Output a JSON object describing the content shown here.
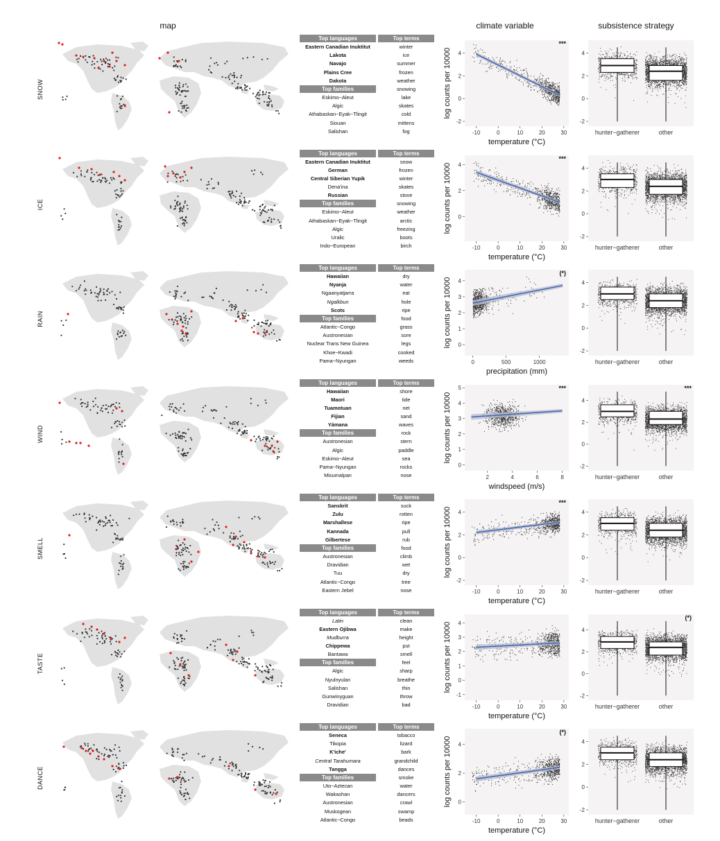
{
  "headers": {
    "map": "map",
    "climate": "climate variable",
    "subsistence": "subsistence strategy"
  },
  "table_headers": {
    "languages": "Top languages",
    "terms": "Top terms",
    "families": "Top families"
  },
  "boxplot_categories": [
    "hunter−gatherer",
    "other"
  ],
  "ylabel": "log counts per 10000",
  "colors": {
    "point": "#333333",
    "highlight": "#e41a1c",
    "fit": "#4a67b0",
    "band": "#b8bfd0",
    "panel": "#f6f3f4",
    "land": "#e1e1e1",
    "tablehead": "#8a8a8a"
  },
  "rows": [
    {
      "label": "SNOW",
      "languages": [
        {
          "name": "Eastern Canadian Inuktitut",
          "style": "b"
        },
        {
          "name": "Lakota",
          "style": "b"
        },
        {
          "name": "Navajo",
          "style": "b"
        },
        {
          "name": "Plains Cree",
          "style": "b"
        },
        {
          "name": "Dakota",
          "style": "b"
        }
      ],
      "families": [
        "Eskimo−Aleut",
        "Algic",
        "Athabaskan−Eyak−Tlingit",
        "Siouan",
        "Salishan"
      ],
      "terms": [
        "winter",
        "ice",
        "summer",
        "frozen",
        "weather",
        "snowing",
        "lake",
        "skates",
        "cold",
        "mittens",
        "fog"
      ],
      "scatter": {
        "xlabel": "temperature (°C)",
        "xlim": [
          -14,
          31
        ],
        "ylim": [
          -2.3,
          5
        ],
        "xticks": [
          -10,
          0,
          10,
          20,
          30
        ],
        "yticks": [
          -2,
          0,
          2,
          4
        ],
        "sig": "***",
        "fit": [
          [
            -10,
            3.9
          ],
          [
            28,
            0.3
          ]
        ],
        "trend": "negative"
      },
      "box": {
        "ylim": [
          -2.3,
          5
        ],
        "yticks": [
          -2,
          0,
          2,
          4
        ],
        "sig": "",
        "hg": {
          "q1": 2.3,
          "median": 2.9,
          "q3": 3.5
        },
        "other": {
          "q1": 1.6,
          "median": 2.4,
          "q3": 2.9
        }
      }
    },
    {
      "label": "ICE",
      "languages": [
        {
          "name": "Eastern Canadian Inuktitut",
          "style": "b"
        },
        {
          "name": "German",
          "style": "b"
        },
        {
          "name": "Central Siberian Yupik",
          "style": "b"
        },
        {
          "name": "Dena'ina",
          "style": ""
        },
        {
          "name": "Russian",
          "style": "b"
        }
      ],
      "families": [
        "Eskimo−Aleut",
        "Athabaskan−Eyak−Tlingit",
        "Algic",
        "Uralic",
        "Indo−European"
      ],
      "terms": [
        "snow",
        "frozen",
        "winter",
        "skates",
        "stove",
        "snowing",
        "weather",
        "arctic",
        "freezing",
        "boots",
        "birch"
      ],
      "scatter": {
        "xlabel": "temperature (°C)",
        "xlim": [
          -14,
          31
        ],
        "ylim": [
          -1.8,
          4.6
        ],
        "xticks": [
          -10,
          0,
          10,
          20,
          30
        ],
        "yticks": [
          0,
          2,
          4
        ],
        "sig": "***",
        "fit": [
          [
            -10,
            3.4
          ],
          [
            28,
            1.1
          ]
        ],
        "trend": "negative"
      },
      "box": {
        "ylim": [
          -2.3,
          5
        ],
        "yticks": [
          -2,
          0,
          2,
          4
        ],
        "sig": "",
        "hg": {
          "q1": 2.3,
          "median": 3.0,
          "q3": 3.5
        },
        "other": {
          "q1": 1.7,
          "median": 2.4,
          "q3": 3.0
        }
      }
    },
    {
      "label": "RAIN",
      "languages": [
        {
          "name": "Hawaiian",
          "style": "b"
        },
        {
          "name": "Nyanja",
          "style": "b"
        },
        {
          "name": "Ngaanyatjarra",
          "style": ""
        },
        {
          "name": "Ngalkbun",
          "style": "i"
        },
        {
          "name": "Scots",
          "style": "b"
        }
      ],
      "families": [
        "Atlantic−Congo",
        "Austronesian",
        "Nuclear Trans New Guinea",
        "Khoe−Kwadi",
        "Pama−Nyungan"
      ],
      "terms": [
        "dry",
        "water",
        "eat",
        "hole",
        "ripe",
        "food",
        "grass",
        "sore",
        "legs",
        "cooked",
        "weeds"
      ],
      "scatter": {
        "xlabel": "precipitation (mm)",
        "xlim": [
          -80,
          1400
        ],
        "ylim": [
          -0.6,
          4.6
        ],
        "xticks": [
          0,
          500,
          1000
        ],
        "yticks": [
          0,
          1,
          2,
          3,
          4
        ],
        "sig": "(*)",
        "fit": [
          [
            0,
            2.6
          ],
          [
            1350,
            3.7
          ]
        ],
        "trend": "rain"
      },
      "box": {
        "ylim": [
          -2.3,
          5
        ],
        "yticks": [
          -2,
          0,
          2,
          4
        ],
        "sig": "",
        "hg": {
          "q1": 2.5,
          "median": 3.0,
          "q3": 3.6
        },
        "other": {
          "q1": 1.8,
          "median": 2.4,
          "q3": 3.0
        }
      }
    },
    {
      "label": "WIND",
      "languages": [
        {
          "name": "Hawaiian",
          "style": "b"
        },
        {
          "name": "Maori",
          "style": "b"
        },
        {
          "name": "Tuamotuan",
          "style": "b"
        },
        {
          "name": "Fijian",
          "style": "b"
        },
        {
          "name": "Yámana",
          "style": "b"
        }
      ],
      "families": [
        "Austronesian",
        "Algic",
        "Eskimo−Aleut",
        "Pama−Nyungan",
        "Misumalpan"
      ],
      "terms": [
        "shore",
        "tide",
        "net",
        "sand",
        "waves",
        "rock",
        "stern",
        "paddle",
        "sea",
        "rocks",
        "nose"
      ],
      "scatter": {
        "xlabel": "windspeed (m/s)",
        "xlim": [
          0.4,
          8.3
        ],
        "ylim": [
          -0.3,
          5.1
        ],
        "xticks": [
          2,
          4,
          6,
          8
        ],
        "yticks": [
          0,
          1,
          2,
          3,
          4,
          5
        ],
        "sig": "***",
        "fit": [
          [
            0.7,
            3.1
          ],
          [
            8,
            3.5
          ]
        ],
        "trend": "wind"
      },
      "box": {
        "ylim": [
          -2.3,
          5.3
        ],
        "yticks": [
          -2,
          0,
          2,
          4
        ],
        "sig": "***",
        "hg": {
          "q1": 2.5,
          "median": 3.0,
          "q3": 3.6
        },
        "other": {
          "q1": 1.8,
          "median": 2.3,
          "q3": 3.0
        }
      }
    },
    {
      "label": "SMELL",
      "languages": [
        {
          "name": "Sanskrit",
          "style": "b"
        },
        {
          "name": "Zulu",
          "style": "b"
        },
        {
          "name": "Marshallese",
          "style": "b"
        },
        {
          "name": "Kannada",
          "style": "b"
        },
        {
          "name": "Gilbertese",
          "style": "b"
        }
      ],
      "families": [
        "Austronesian",
        "Dravidian",
        "Tuu",
        "Atlantic−Congo",
        "Eastern Jebel"
      ],
      "terms": [
        "suck",
        "rotten",
        "ripe",
        "pull",
        "rub",
        "food",
        "climb",
        "wet",
        "dry",
        "tree",
        "nose"
      ],
      "scatter": {
        "xlabel": "temperature (°C)",
        "xlim": [
          -14,
          31
        ],
        "ylim": [
          -2.3,
          5
        ],
        "xticks": [
          -10,
          0,
          10,
          20,
          30
        ],
        "yticks": [
          -2,
          0,
          2,
          4
        ],
        "sig": "***",
        "fit": [
          [
            -10,
            2.2
          ],
          [
            28,
            3.1
          ]
        ],
        "trend": "flat-up"
      },
      "box": {
        "ylim": [
          -2.3,
          5
        ],
        "yticks": [
          -2,
          0,
          2,
          4
        ],
        "sig": "",
        "hg": {
          "q1": 2.4,
          "median": 3.0,
          "q3": 3.5
        },
        "other": {
          "q1": 1.8,
          "median": 2.4,
          "q3": 3.0
        }
      }
    },
    {
      "label": "TASTE",
      "languages": [
        {
          "name": "Latin",
          "style": "i"
        },
        {
          "name": "Eastern Ojibwa",
          "style": "b"
        },
        {
          "name": "Mudburra",
          "style": "i"
        },
        {
          "name": "Chippewa",
          "style": "b"
        },
        {
          "name": "Bantawa",
          "style": ""
        }
      ],
      "families": [
        "Algic",
        "Nyulnyulan",
        "Salishan",
        "Gunwinyguan",
        "Dravidian"
      ],
      "terms": [
        "clean",
        "make",
        "height",
        "put",
        "smell",
        "feel",
        "sharp",
        "breathe",
        "thin",
        "throw",
        "bad"
      ],
      "scatter": {
        "xlabel": "temperature (°C)",
        "xlim": [
          -14,
          31
        ],
        "ylim": [
          -1.3,
          4.5
        ],
        "xticks": [
          -10,
          0,
          10,
          20,
          30
        ],
        "yticks": [
          -1,
          0,
          1,
          2,
          3,
          4
        ],
        "sig": "",
        "fit": [
          [
            -10,
            2.3
          ],
          [
            28,
            2.6
          ]
        ],
        "trend": "flat"
      },
      "box": {
        "ylim": [
          -2.3,
          5.3
        ],
        "yticks": [
          -2,
          0,
          2,
          4
        ],
        "sig": "(*)",
        "hg": {
          "q1": 2.3,
          "median": 2.9,
          "q3": 3.4
        },
        "other": {
          "q1": 1.7,
          "median": 2.4,
          "q3": 2.9
        }
      }
    },
    {
      "label": "DANCE",
      "languages": [
        {
          "name": "Seneca",
          "style": "b"
        },
        {
          "name": "Tikopia",
          "style": ""
        },
        {
          "name": "K'iche'",
          "style": "b"
        },
        {
          "name": "Central Tarahumara",
          "style": "i"
        },
        {
          "name": "Tangga",
          "style": "b"
        }
      ],
      "families": [
        "Uto−Aztecan",
        "Wakashan",
        "Austronesian",
        "Muskogean",
        "Atlantic−Congo"
      ],
      "terms": [
        "tobacco",
        "lizard",
        "bark",
        "grandchild",
        "dances",
        "smoke",
        "water",
        "dancers",
        "crawl",
        "swamp",
        "beads"
      ],
      "scatter": {
        "xlabel": "temperature (°C)",
        "xlim": [
          -14,
          31
        ],
        "ylim": [
          -0.8,
          5
        ],
        "xticks": [
          -10,
          0,
          10,
          20,
          30
        ],
        "yticks": [
          0,
          2,
          4
        ],
        "sig": "(*)",
        "fit": [
          [
            -10,
            1.6
          ],
          [
            28,
            2.4
          ]
        ],
        "trend": "up"
      },
      "box": {
        "ylim": [
          -2.3,
          5
        ],
        "yticks": [
          -2,
          0,
          2,
          4
        ],
        "sig": "",
        "hg": {
          "q1": 2.4,
          "median": 3.0,
          "q3": 3.5
        },
        "other": {
          "q1": 1.8,
          "median": 2.4,
          "q3": 3.0
        }
      }
    }
  ]
}
